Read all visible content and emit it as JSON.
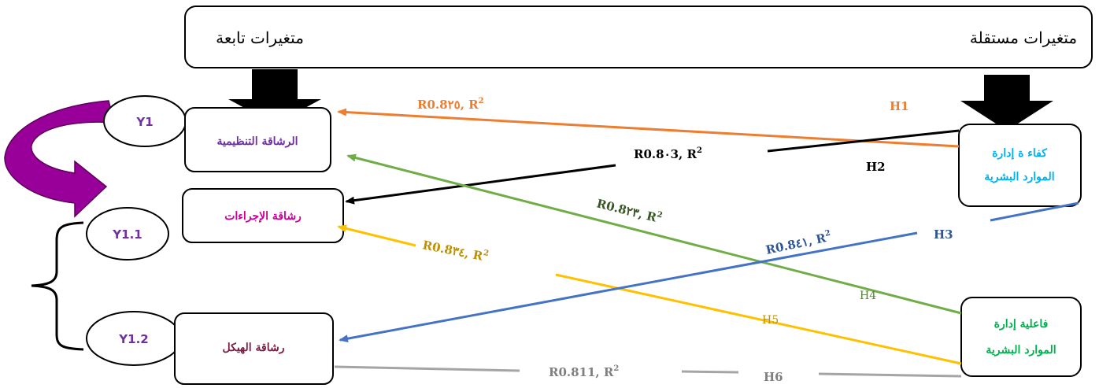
{
  "colors": {
    "orange": "#ED7D31",
    "black": "#000000",
    "green": "#70AD47",
    "dark_green": "#375623",
    "blue": "#4472C4",
    "dark_blue": "#2F5597",
    "yellow": "#FFC000",
    "dark_yellow": "#BF9000",
    "gray": "#A5A5A5",
    "gray_text": "#7F7F7F",
    "purple_text": "#7030A0",
    "magenta_text": "#CC0099",
    "maroon_text": "#7B1E46",
    "cyan_text": "#00B0F0",
    "green_text": "#00B050",
    "ellipse_text": "#7030A0",
    "curved_arrow": "#990099"
  },
  "header": {
    "dependent_label": "متغيرات تابعة",
    "independent_label": "متغيرات مستقلة"
  },
  "dependent": {
    "organizational_agility": "الرشاقة التنظيمية",
    "procedures_agility": "رشاقة الإجراءات",
    "structure_agility": "رشاقة الهيكل"
  },
  "independent": {
    "competency_line1": "كفاء ة إدارة",
    "competency_line2": "الموارد البشرية",
    "effectiveness_line1": "فاعلية إدارة",
    "effectiveness_line2": "الموارد البشرية"
  },
  "variables": {
    "y1": "Y1",
    "y1_1": "Y1.1",
    "y1_2": "Y1.2"
  },
  "hypotheses": {
    "h1": "H1",
    "h2": "H2",
    "h3": "H3",
    "h4": "H4",
    "h5": "H5",
    "h6": "H6"
  },
  "coefficients": {
    "r1": "R0.8٢٥, R",
    "r2": "R0.8٠3, R",
    "r3": "R0.8٢٣, R",
    "r4": "R0.8٣٤, R",
    "r5": "R0.8٤١, R",
    "r6": "R0.811, R",
    "sup": "2"
  }
}
